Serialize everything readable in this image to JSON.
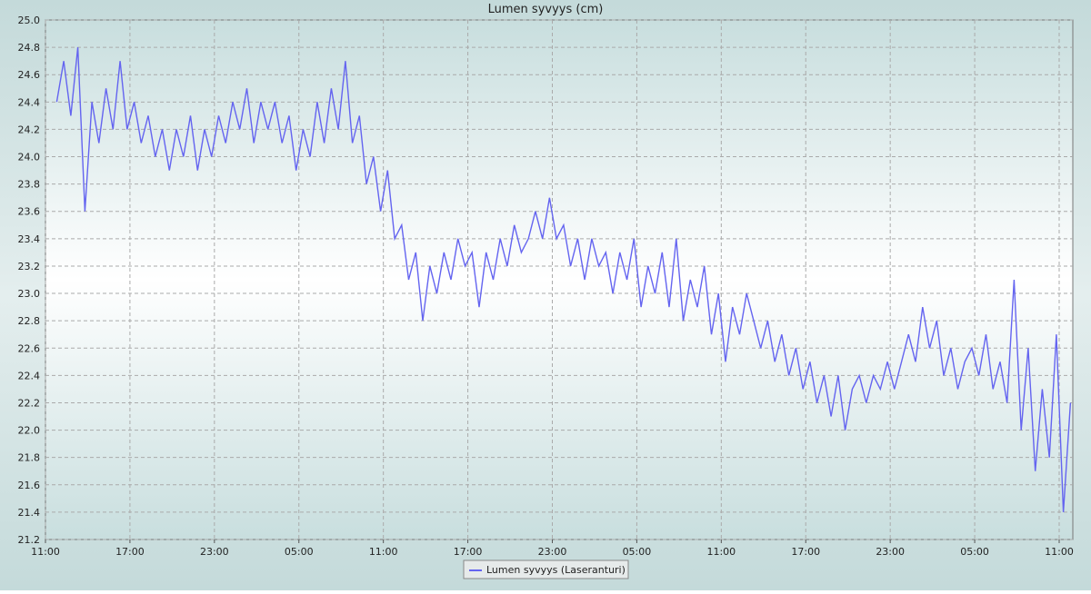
{
  "chart_data": {
    "type": "line",
    "title": "Lumen syvyys (cm)",
    "x": [
      0.8,
      1.3,
      1.8,
      2.3,
      2.8,
      3.3,
      3.8,
      4.3,
      4.8,
      5.3,
      5.8,
      6.3,
      6.8,
      7.3,
      7.8,
      8.3,
      8.8,
      9.3,
      9.8,
      10.3,
      10.8,
      11.3,
      11.8,
      12.3,
      12.8,
      13.3,
      13.8,
      14.3,
      14.8,
      15.3,
      15.8,
      16.3,
      16.8,
      17.3,
      17.8,
      18.3,
      18.8,
      19.3,
      19.8,
      20.3,
      20.8,
      21.3,
      21.8,
      22.3,
      22.8,
      23.3,
      23.8,
      24.3,
      24.8,
      25.3,
      25.8,
      26.3,
      26.8,
      27.3,
      27.8,
      28.3,
      28.8,
      29.3,
      29.8,
      30.3,
      30.8,
      31.3,
      31.8,
      32.3,
      32.8,
      33.3,
      33.8,
      34.3,
      34.8,
      35.3,
      35.8,
      36.3,
      36.8,
      37.3,
      37.8,
      38.3,
      38.8,
      39.3,
      39.8,
      40.3,
      40.8,
      41.3,
      41.8,
      42.3,
      42.8,
      43.3,
      43.8,
      44.3,
      44.8,
      45.3,
      45.8,
      46.3,
      46.8,
      47.3,
      47.8,
      48.3,
      48.8,
      49.3,
      49.8,
      50.3,
      50.8,
      51.3,
      51.8,
      52.3,
      52.8,
      53.3,
      53.8,
      54.3,
      54.8,
      55.3,
      55.8,
      56.3,
      56.8,
      57.3,
      57.8,
      58.3,
      58.8,
      59.3,
      59.8,
      60.3,
      60.8,
      61.3,
      61.8,
      62.3,
      62.8,
      63.3,
      63.8,
      64.3,
      64.8,
      65.3,
      65.8,
      66.3,
      66.8,
      67.3,
      67.8,
      68.3,
      68.8,
      69.3,
      69.8,
      70.3,
      70.8,
      71.3,
      71.8,
      72.3,
      72.8
    ],
    "series": [
      {
        "name": "Lumen syvyys (Laseranturi)",
        "color": "#6464f0",
        "values": [
          24.4,
          24.7,
          24.3,
          24.8,
          23.6,
          24.4,
          24.1,
          24.5,
          24.2,
          24.7,
          24.2,
          24.4,
          24.1,
          24.3,
          24.0,
          24.2,
          23.9,
          24.2,
          24.0,
          24.3,
          23.9,
          24.2,
          24.0,
          24.3,
          24.1,
          24.4,
          24.2,
          24.5,
          24.1,
          24.4,
          24.2,
          24.4,
          24.1,
          24.3,
          23.9,
          24.2,
          24.0,
          24.4,
          24.1,
          24.5,
          24.2,
          24.7,
          24.1,
          24.3,
          23.8,
          24.0,
          23.6,
          23.9,
          23.4,
          23.5,
          23.1,
          23.3,
          22.8,
          23.2,
          23.0,
          23.3,
          23.1,
          23.4,
          23.2,
          23.3,
          22.9,
          23.3,
          23.1,
          23.4,
          23.2,
          23.5,
          23.3,
          23.4,
          23.6,
          23.4,
          23.7,
          23.4,
          23.5,
          23.2,
          23.4,
          23.1,
          23.4,
          23.2,
          23.3,
          23.0,
          23.3,
          23.1,
          23.4,
          22.9,
          23.2,
          23.0,
          23.3,
          22.9,
          23.4,
          22.8,
          23.1,
          22.9,
          23.2,
          22.7,
          23.0,
          22.5,
          22.9,
          22.7,
          23.0,
          22.8,
          22.6,
          22.8,
          22.5,
          22.7,
          22.4,
          22.6,
          22.3,
          22.5,
          22.2,
          22.4,
          22.1,
          22.4,
          22.0,
          22.3,
          22.4,
          22.2,
          22.4,
          22.3,
          22.5,
          22.3,
          22.5,
          22.7,
          22.5,
          22.9,
          22.6,
          22.8,
          22.4,
          22.6,
          22.3,
          22.5,
          22.6,
          22.4,
          22.7,
          22.3,
          22.5,
          22.2,
          23.1,
          22.0,
          22.6,
          21.7,
          22.3,
          21.8,
          22.7,
          21.4,
          22.2
        ]
      }
    ],
    "xlim": [
      0,
      73
    ],
    "xticks": [
      {
        "value": 0,
        "label": "11:00"
      },
      {
        "value": 6,
        "label": "17:00"
      },
      {
        "value": 12,
        "label": "23:00"
      },
      {
        "value": 18,
        "label": "05:00"
      },
      {
        "value": 24,
        "label": "11:00"
      },
      {
        "value": 30,
        "label": "17:00"
      },
      {
        "value": 36,
        "label": "23:00"
      },
      {
        "value": 42,
        "label": "05:00"
      },
      {
        "value": 48,
        "label": "11:00"
      },
      {
        "value": 54,
        "label": "17:00"
      },
      {
        "value": 60,
        "label": "23:00"
      },
      {
        "value": 66,
        "label": "05:00"
      },
      {
        "value": 72,
        "label": "11:00"
      }
    ],
    "ylim": [
      21.2,
      25.0
    ],
    "yticks": [
      21.2,
      21.4,
      21.6,
      21.8,
      {
        "value": 22.0,
        "label": "22.0"
      },
      22.2,
      22.4,
      22.6,
      22.8,
      {
        "value": 23.0,
        "label": "23.0"
      },
      23.2,
      23.4,
      23.6,
      23.8,
      {
        "value": 24.0,
        "label": "24.0"
      },
      24.2,
      24.4,
      24.6,
      24.8,
      {
        "value": 25.0,
        "label": "25.0"
      }
    ],
    "grid": true,
    "legend": "bottom"
  }
}
